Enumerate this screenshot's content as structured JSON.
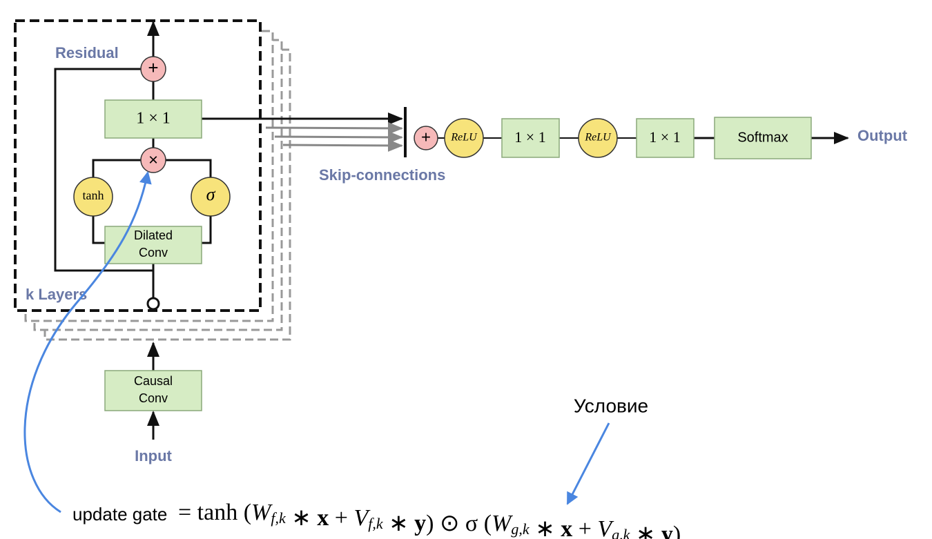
{
  "block": {
    "residual": "Residual",
    "add_symbol": "+",
    "conv1x1": "1 × 1",
    "mul_symbol": "×",
    "tanh": "tanh",
    "sigma": "σ",
    "dilated_conv": [
      "Dilated",
      "Conv"
    ],
    "k_layers": "k Layers"
  },
  "input_stage": {
    "causal_conv": [
      "Causal",
      "Conv"
    ],
    "input": "Input"
  },
  "output_stage": {
    "skip_connections": "Skip-connections",
    "add_symbol": "+",
    "relu_1": "ReLU",
    "conv_1": "1 × 1",
    "relu_2": "ReLU",
    "conv_2": "1 × 1",
    "softmax": "Softmax",
    "output": "Output"
  },
  "annotations": {
    "condition": "Условие",
    "update_gate": "update gate"
  },
  "formula": [
    {
      "text": "= tanh (",
      "style": "normal"
    },
    {
      "text": "W",
      "style": "italic"
    },
    {
      "text": "f,k",
      "style": "sub"
    },
    {
      "text": " ∗ ",
      "style": "normal"
    },
    {
      "text": "x",
      "style": "bold"
    },
    {
      "text": " + ",
      "style": "normal"
    },
    {
      "text": "V",
      "style": "italic"
    },
    {
      "text": "f,k",
      "style": "sub"
    },
    {
      "text": " ∗ ",
      "style": "normal"
    },
    {
      "text": "y",
      "style": "bold"
    },
    {
      "text": ") ⊙ σ (",
      "style": "normal"
    },
    {
      "text": "W",
      "style": "italic"
    },
    {
      "text": "g,k",
      "style": "sub"
    },
    {
      "text": " ∗ ",
      "style": "normal"
    },
    {
      "text": "x",
      "style": "bold"
    },
    {
      "text": " + ",
      "style": "normal"
    },
    {
      "text": "V",
      "style": "italic"
    },
    {
      "text": "g,k",
      "style": "sub"
    },
    {
      "text": " ∗ ",
      "style": "normal"
    },
    {
      "text": "y",
      "style": "bold"
    },
    {
      "text": ")",
      "style": "normal"
    }
  ]
}
